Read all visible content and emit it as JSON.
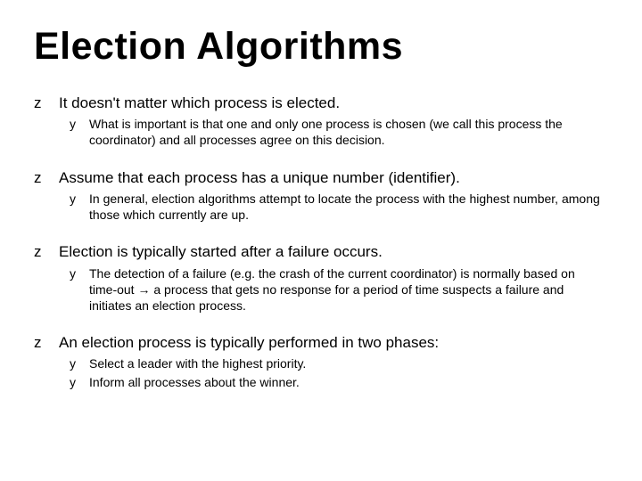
{
  "title": "Election Algorithms",
  "bullet_top_marker": "z",
  "bullet_sub_marker": "y",
  "title_fontsize": 43,
  "top_fontsize": 17,
  "sub_fontsize": 14,
  "text_color": "#000000",
  "background_color": "#ffffff",
  "items": [
    {
      "text": "It doesn't matter which process is elected.",
      "subs": [
        "What is important is that one and only one process is chosen (we call this process the coordinator) and all processes agree on this decision."
      ]
    },
    {
      "text": "Assume that each process has a unique number (identifier).",
      "subs": [
        "In general, election algorithms attempt to locate the process with the highest number, among those which currently are up."
      ]
    },
    {
      "text": "Election is typically started after a failure occurs.",
      "subs": [
        "The detection of a failure (e.g. the crash of the current coordinator) is normally based on time-out → a process that gets no response for a period of time suspects a failure and initiates an election process."
      ]
    },
    {
      "text": "An election process is typically performed in two phases:",
      "subs": [
        "Select a leader with the highest priority.",
        "Inform all processes about the winner."
      ]
    }
  ]
}
